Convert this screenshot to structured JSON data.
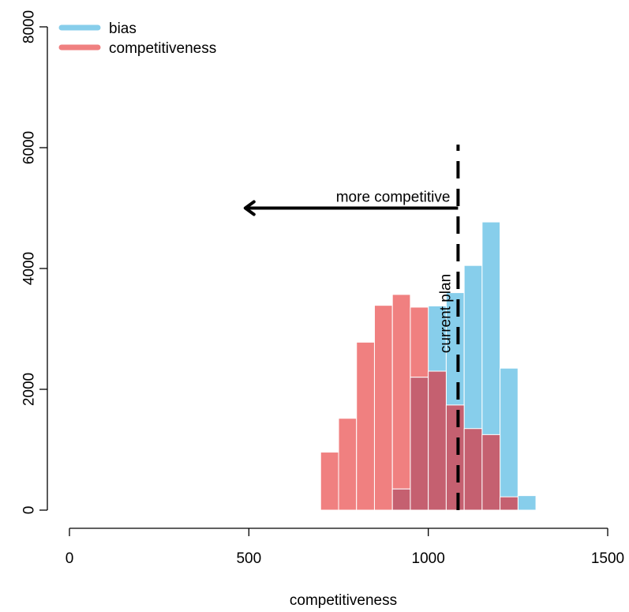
{
  "chart_data": {
    "type": "bar",
    "title": "",
    "xlabel": "competitiveness",
    "ylabel": "",
    "xlim": [
      0,
      1500
    ],
    "ylim": [
      0,
      8000
    ],
    "x_ticks": [
      0,
      500,
      1000,
      1500
    ],
    "y_ticks": [
      0,
      2000,
      4000,
      6000,
      8000
    ],
    "x_tick_labels": [
      "0",
      "500",
      "1000",
      "1500"
    ],
    "y_tick_labels": [
      "0",
      "2000",
      "4000",
      "6000",
      "8000"
    ],
    "grid": false,
    "legend_position": "top-left",
    "bin_width": 50,
    "series": [
      {
        "name": "bias",
        "color": "#87CEEB",
        "bins": [
          {
            "x0": 900,
            "x1": 950,
            "count": 350
          },
          {
            "x0": 950,
            "x1": 1000,
            "count": 2200
          },
          {
            "x0": 1000,
            "x1": 1050,
            "count": 3380
          },
          {
            "x0": 1050,
            "x1": 1100,
            "count": 3600
          },
          {
            "x0": 1100,
            "x1": 1150,
            "count": 4050
          },
          {
            "x0": 1150,
            "x1": 1200,
            "count": 4770
          },
          {
            "x0": 1200,
            "x1": 1250,
            "count": 2350
          },
          {
            "x0": 1250,
            "x1": 1300,
            "count": 240
          }
        ]
      },
      {
        "name": "competitiveness",
        "color": "#F08080",
        "bins": [
          {
            "x0": 700,
            "x1": 750,
            "count": 960
          },
          {
            "x0": 750,
            "x1": 800,
            "count": 1520
          },
          {
            "x0": 800,
            "x1": 850,
            "count": 2780
          },
          {
            "x0": 850,
            "x1": 900,
            "count": 3390
          },
          {
            "x0": 900,
            "x1": 950,
            "count": 3570
          },
          {
            "x0": 950,
            "x1": 1000,
            "count": 3360
          },
          {
            "x0": 1000,
            "x1": 1050,
            "count": 2300
          },
          {
            "x0": 1050,
            "x1": 1100,
            "count": 1740
          },
          {
            "x0": 1100,
            "x1": 1150,
            "count": 1350
          },
          {
            "x0": 1150,
            "x1": 1200,
            "count": 1250
          },
          {
            "x0": 1200,
            "x1": 1250,
            "count": 220
          }
        ]
      }
    ],
    "overlap_color": "#C56070",
    "annotations": {
      "current_plan": {
        "label": "current plan",
        "x": 1083,
        "y_from": 0,
        "y_to": 6050
      },
      "arrow": {
        "label": "more competitive",
        "x_from": 1083,
        "x_to": 490,
        "y": 5000
      }
    }
  }
}
